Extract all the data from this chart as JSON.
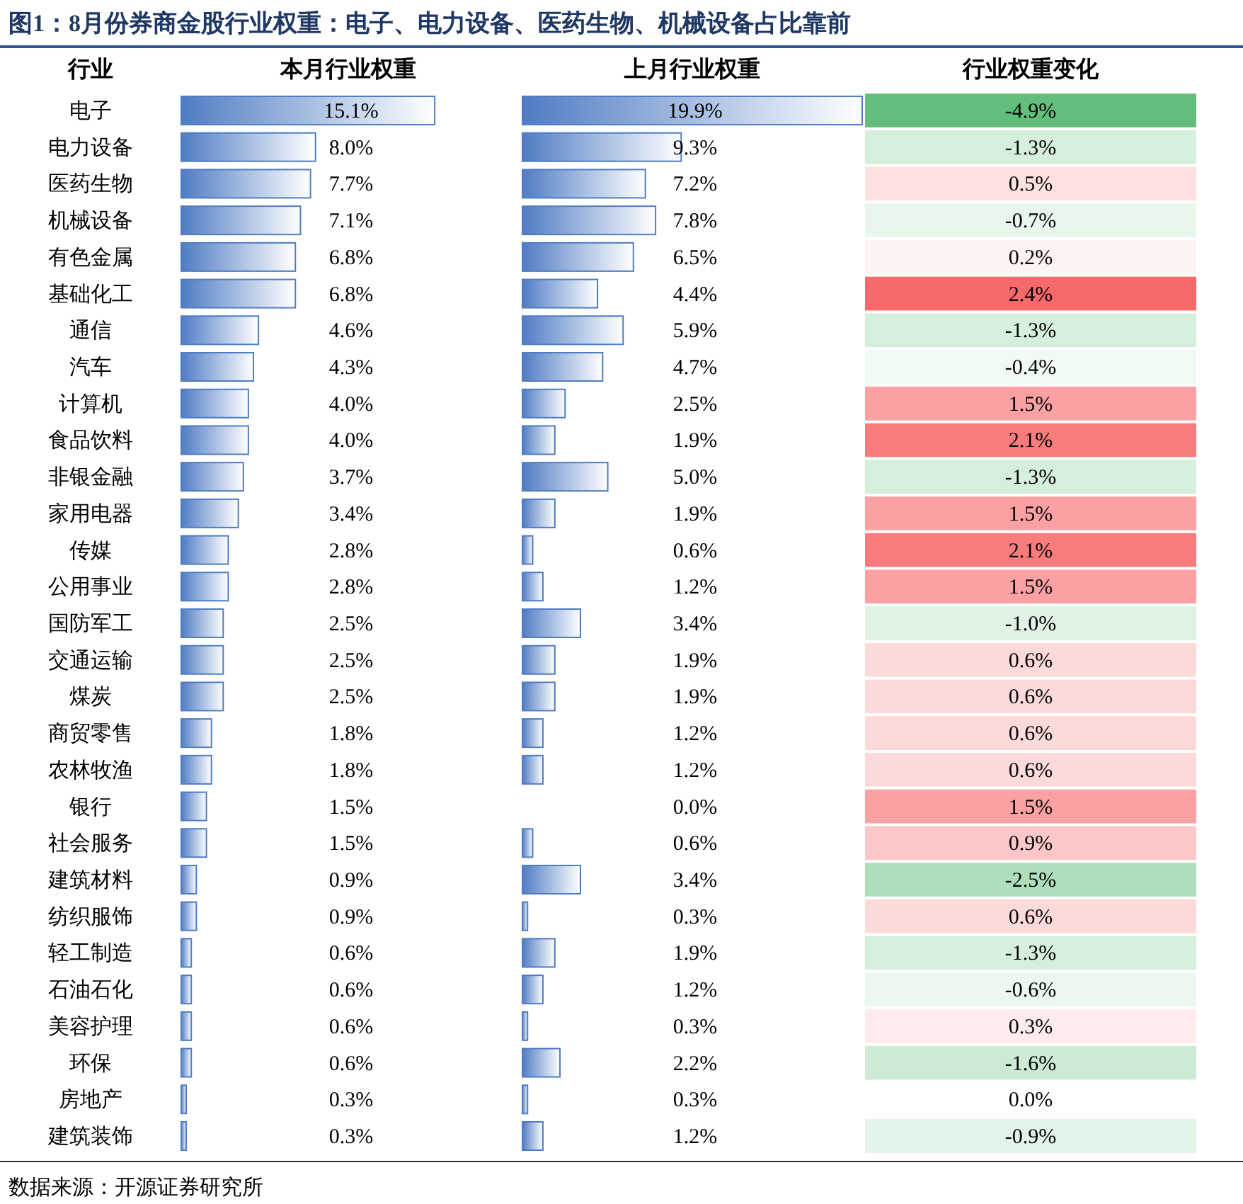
{
  "chart_data": [
    {
      "type": "other",
      "title": "图1：8月份券商金股行业权重：电子、电力设备、医药生物、机械设备占比靠前",
      "annotations": [
        "数据来源：开源证券研究所"
      ]
    },
    {
      "type": "bar",
      "orientation": "horizontal",
      "title": "本月行业权重",
      "color": "#4f7cc4",
      "values": [
        15.1,
        8.0,
        7.7,
        7.1,
        6.8,
        6.8,
        4.6,
        4.3,
        4.0,
        4.0,
        3.7,
        3.4,
        2.8,
        2.8,
        2.5,
        2.5,
        2.5,
        1.8,
        1.8,
        1.5,
        1.5,
        0.9,
        0.9,
        0.6,
        0.6,
        0.6,
        0.6,
        0.3,
        0.3
      ],
      "value_labels": [
        "15.1%",
        "8.0%",
        "7.7%",
        "7.1%",
        "6.8%",
        "6.8%",
        "4.6%",
        "4.3%",
        "4.0%",
        "4.0%",
        "3.7%",
        "3.4%",
        "2.8%",
        "2.8%",
        "2.5%",
        "2.5%",
        "2.5%",
        "1.8%",
        "1.8%",
        "1.5%",
        "1.5%",
        "0.9%",
        "0.9%",
        "0.6%",
        "0.6%",
        "0.6%",
        "0.6%",
        "0.3%",
        "0.3%"
      ]
    },
    {
      "type": "bar",
      "orientation": "horizontal",
      "title": "上月行业权重",
      "color": "#4f7cc4",
      "values": [
        19.9,
        9.3,
        7.2,
        7.8,
        6.5,
        4.4,
        5.9,
        4.7,
        2.5,
        1.9,
        5.0,
        1.9,
        0.6,
        1.2,
        3.4,
        1.9,
        1.9,
        1.2,
        1.2,
        0.0,
        0.6,
        3.4,
        0.3,
        1.9,
        1.2,
        0.3,
        2.2,
        0.3,
        1.2
      ],
      "value_labels": [
        "19.9%",
        "9.3%",
        "7.2%",
        "7.8%",
        "6.5%",
        "4.4%",
        "5.9%",
        "4.7%",
        "2.5%",
        "1.9%",
        "5.0%",
        "1.9%",
        "0.6%",
        "1.2%",
        "3.4%",
        "1.9%",
        "1.9%",
        "1.2%",
        "1.2%",
        "0.0%",
        "0.6%",
        "3.4%",
        "0.3%",
        "1.9%",
        "1.2%",
        "0.3%",
        "2.2%",
        "0.3%",
        "1.2%"
      ]
    },
    {
      "type": "heatmap",
      "title": "行业权重变化",
      "ylabel": "行业",
      "categories": [
        null
      ],
      "y_categories": [
        "电子",
        "电力设备",
        "医药生物",
        "机械设备",
        "有色金属",
        "基础化工",
        "通信",
        "汽车",
        "计算机",
        "食品饮料",
        "非银金融",
        "家用电器",
        "传媒",
        "公用事业",
        "国防军工",
        "交通运输",
        "煤炭",
        "商贸零售",
        "农林牧渔",
        "银行",
        "社会服务",
        "建筑材料",
        "纺织服饰",
        "轻工制造",
        "石油石化",
        "美容护理",
        "环保",
        "房地产",
        "建筑装饰"
      ],
      "cells": [
        [
          -4.9
        ],
        [
          -1.3
        ],
        [
          0.5
        ],
        [
          -0.7
        ],
        [
          0.2
        ],
        [
          2.4
        ],
        [
          -1.3
        ],
        [
          -0.4
        ],
        [
          1.5
        ],
        [
          2.1
        ],
        [
          -1.3
        ],
        [
          1.5
        ],
        [
          2.1
        ],
        [
          1.5
        ],
        [
          -1.0
        ],
        [
          0.6
        ],
        [
          0.6
        ],
        [
          0.6
        ],
        [
          0.6
        ],
        [
          1.5
        ],
        [
          0.9
        ],
        [
          -2.5
        ],
        [
          0.6
        ],
        [
          -1.3
        ],
        [
          -0.6
        ],
        [
          0.3
        ],
        [
          -1.6
        ],
        [
          0.0
        ],
        [
          -0.9
        ]
      ],
      "cell_labels": [
        [
          "-4.9%"
        ],
        [
          "-1.3%"
        ],
        [
          "0.5%"
        ],
        [
          "-0.7%"
        ],
        [
          "0.2%"
        ],
        [
          "2.4%"
        ],
        [
          "-1.3%"
        ],
        [
          "-0.4%"
        ],
        [
          "1.5%"
        ],
        [
          "2.1%"
        ],
        [
          "-1.3%"
        ],
        [
          "1.5%"
        ],
        [
          "2.1%"
        ],
        [
          "1.5%"
        ],
        [
          "-1.0%"
        ],
        [
          "0.6%"
        ],
        [
          "0.6%"
        ],
        [
          "0.6%"
        ],
        [
          "0.6%"
        ],
        [
          "1.5%"
        ],
        [
          "0.9%"
        ],
        [
          "-2.5%"
        ],
        [
          "0.6%"
        ],
        [
          "-1.3%"
        ],
        [
          "-0.6%"
        ],
        [
          "0.3%"
        ],
        [
          "-1.6%"
        ],
        [
          "0.0%"
        ],
        [
          "-0.9%"
        ]
      ]
    }
  ]
}
